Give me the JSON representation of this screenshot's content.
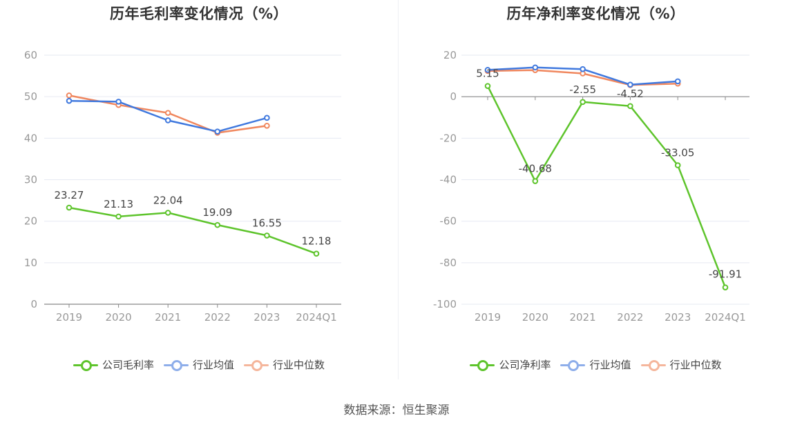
{
  "source_text": "数据来源：恒生聚源",
  "colors": {
    "company": "#5ec42c",
    "industry_avg": "#3f78de",
    "industry_median": "#f0875e",
    "grid": "#e6e9f2",
    "axis": "#888888",
    "tick_text": "#999999",
    "label_text": "#444444"
  },
  "chart_data": [
    {
      "type": "line",
      "title": "历年毛利率变化情况（%）",
      "categories": [
        "2019",
        "2020",
        "2021",
        "2022",
        "2023",
        "2024Q1"
      ],
      "ylim": [
        0,
        60
      ],
      "yticks": [
        0,
        10,
        20,
        30,
        40,
        50,
        60
      ],
      "grid": true,
      "legend_position": "bottom",
      "series": [
        {
          "name": "公司毛利率",
          "values": [
            23.27,
            21.13,
            22.04,
            19.09,
            16.55,
            12.18
          ],
          "labels": [
            "23.27",
            "21.13",
            "22.04",
            "19.09",
            "16.55",
            "12.18"
          ]
        },
        {
          "name": "行业均值",
          "values": [
            49.0,
            48.8,
            44.3,
            41.6,
            44.9,
            null
          ]
        },
        {
          "name": "行业中位数",
          "values": [
            50.3,
            48.0,
            46.1,
            41.3,
            43.0,
            null
          ]
        }
      ]
    },
    {
      "type": "line",
      "title": "历年净利率变化情况（%）",
      "categories": [
        "2019",
        "2020",
        "2021",
        "2022",
        "2023",
        "2024Q1"
      ],
      "ylim": [
        -100,
        20
      ],
      "yticks": [
        -100,
        -80,
        -60,
        -40,
        -20,
        0,
        20
      ],
      "grid": true,
      "legend_position": "bottom",
      "series": [
        {
          "name": "公司净利率",
          "values": [
            5.15,
            -40.68,
            -2.55,
            -4.52,
            -33.05,
            -91.91
          ],
          "labels": [
            "5.15",
            "-40.68",
            "-2.55",
            "-4.52",
            "-33.05",
            "-91.91"
          ]
        },
        {
          "name": "行业均值",
          "values": [
            12.9,
            14.1,
            13.3,
            5.8,
            7.4,
            null
          ]
        },
        {
          "name": "行业中位数",
          "values": [
            12.4,
            12.8,
            11.2,
            5.6,
            6.3,
            null
          ]
        }
      ]
    }
  ]
}
